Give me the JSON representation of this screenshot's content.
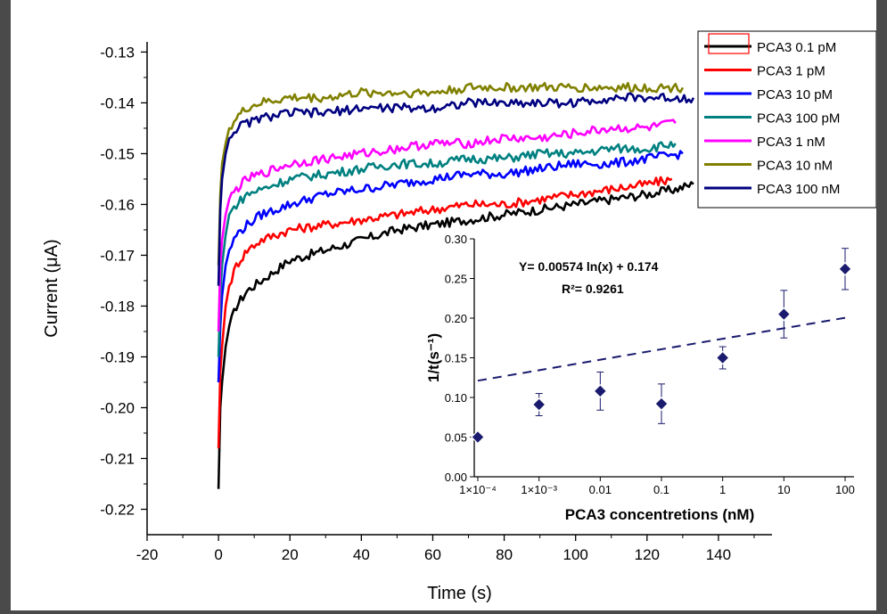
{
  "chart_data": [
    {
      "type": "line",
      "xlabel": "Time (s)",
      "ylabel": "Current (μA)",
      "xlim": [
        -20,
        155
      ],
      "ylim": [
        -0.225,
        -0.128
      ],
      "x_ticks": [
        "-20",
        "0",
        "20",
        "40",
        "60",
        "80",
        "100",
        "120",
        "140"
      ],
      "x_tick_values": [
        -20,
        0,
        20,
        40,
        60,
        80,
        100,
        120,
        140
      ],
      "y_ticks": [
        "-0.13",
        "-0.14",
        "-0.15",
        "-0.16",
        "-0.17",
        "-0.18",
        "-0.19",
        "-0.20",
        "-0.21",
        "-0.22"
      ],
      "y_tick_values": [
        -0.13,
        -0.14,
        -0.15,
        -0.16,
        -0.17,
        -0.18,
        -0.19,
        -0.2,
        -0.21,
        -0.22
      ],
      "legend_placement": "top-right",
      "series": [
        {
          "name": "PCA3 0.1  pM",
          "color": "#000000",
          "x": [
            0,
            0.5,
            1,
            2,
            3,
            5,
            8,
            12,
            20,
            30,
            40,
            50,
            60,
            70,
            80,
            90,
            100,
            110,
            120,
            128,
            133
          ],
          "y": [
            -0.216,
            -0.2,
            -0.195,
            -0.188,
            -0.184,
            -0.18,
            -0.177,
            -0.175,
            -0.171,
            -0.169,
            -0.167,
            -0.165,
            -0.164,
            -0.163,
            -0.162,
            -0.161,
            -0.16,
            -0.159,
            -0.158,
            -0.157,
            -0.156
          ]
        },
        {
          "name": "PCA3 1    pM",
          "color": "#ff0000",
          "x": [
            0,
            0.5,
            1,
            2,
            3,
            5,
            8,
            12,
            20,
            30,
            40,
            50,
            60,
            70,
            80,
            90,
            100,
            110,
            120,
            127
          ],
          "y": [
            -0.208,
            -0.193,
            -0.188,
            -0.18,
            -0.176,
            -0.172,
            -0.169,
            -0.167,
            -0.165,
            -0.164,
            -0.163,
            -0.162,
            -0.161,
            -0.16,
            -0.16,
            -0.159,
            -0.158,
            -0.157,
            -0.156,
            -0.155
          ]
        },
        {
          "name": "PCA3 10   pM",
          "color": "#0000ff",
          "x": [
            0,
            0.5,
            1,
            2,
            3,
            5,
            8,
            12,
            20,
            30,
            40,
            50,
            60,
            70,
            80,
            90,
            100,
            110,
            120,
            130
          ],
          "y": [
            -0.195,
            -0.184,
            -0.178,
            -0.172,
            -0.169,
            -0.166,
            -0.164,
            -0.162,
            -0.16,
            -0.158,
            -0.157,
            -0.156,
            -0.155,
            -0.154,
            -0.154,
            -0.153,
            -0.152,
            -0.152,
            -0.151,
            -0.15
          ]
        },
        {
          "name": "PCA3 100 pM",
          "color": "#008080",
          "x": [
            0,
            0.5,
            1,
            2,
            3,
            5,
            8,
            12,
            20,
            30,
            40,
            50,
            60,
            70,
            80,
            90,
            100,
            110,
            120,
            128
          ],
          "y": [
            -0.19,
            -0.178,
            -0.172,
            -0.166,
            -0.162,
            -0.16,
            -0.158,
            -0.157,
            -0.155,
            -0.154,
            -0.153,
            -0.152,
            -0.152,
            -0.151,
            -0.151,
            -0.15,
            -0.15,
            -0.149,
            -0.149,
            -0.148
          ]
        },
        {
          "name": "PCA3 1    nM",
          "color": "#ff00ff",
          "x": [
            0,
            0.5,
            1,
            2,
            3,
            5,
            8,
            12,
            20,
            30,
            40,
            50,
            60,
            70,
            80,
            90,
            100,
            110,
            120,
            128
          ],
          "y": [
            -0.185,
            -0.172,
            -0.167,
            -0.162,
            -0.159,
            -0.157,
            -0.155,
            -0.154,
            -0.152,
            -0.151,
            -0.15,
            -0.149,
            -0.148,
            -0.148,
            -0.147,
            -0.147,
            -0.146,
            -0.145,
            -0.145,
            -0.144
          ]
        },
        {
          "name": "PCA3 10   nM",
          "color": "#808000",
          "x": [
            0,
            0.5,
            1,
            2,
            3,
            5,
            8,
            12,
            20,
            30,
            40,
            50,
            60,
            70,
            80,
            90,
            100,
            110,
            120,
            130
          ],
          "y": [
            -0.172,
            -0.158,
            -0.152,
            -0.148,
            -0.145,
            -0.143,
            -0.141,
            -0.14,
            -0.139,
            -0.139,
            -0.138,
            -0.138,
            -0.138,
            -0.137,
            -0.137,
            -0.137,
            -0.137,
            -0.137,
            -0.137,
            -0.137
          ]
        },
        {
          "name": "PCA3 100 nM",
          "color": "#000080",
          "x": [
            0,
            0.5,
            1,
            2,
            3,
            5,
            8,
            12,
            20,
            30,
            40,
            50,
            60,
            70,
            80,
            90,
            100,
            110,
            120,
            133
          ],
          "y": [
            -0.176,
            -0.161,
            -0.155,
            -0.15,
            -0.147,
            -0.145,
            -0.144,
            -0.143,
            -0.142,
            -0.142,
            -0.141,
            -0.141,
            -0.141,
            -0.14,
            -0.14,
            -0.14,
            -0.14,
            -0.139,
            -0.139,
            -0.139
          ]
        }
      ]
    },
    {
      "type": "scatter",
      "xlabel": "PCA3 concentretions (nM)",
      "ylabel": "1/t(s⁻¹)",
      "x_scale": "log",
      "xlim": [
        0.0001,
        100
      ],
      "ylim": [
        0.0,
        0.3
      ],
      "x_ticks": [
        "1×10⁻⁴",
        "1×10⁻³",
        "0.01",
        "0.1",
        "1",
        "10",
        "100"
      ],
      "x_tick_values": [
        0.0001,
        0.001,
        0.01,
        0.1,
        1,
        10,
        100
      ],
      "y_ticks": [
        "0.00",
        "0.05",
        "0.10",
        "0.15",
        "0.20",
        "0.25",
        "0.30"
      ],
      "y_tick_values": [
        0,
        0.05,
        0.1,
        0.15,
        0.2,
        0.25,
        0.3
      ],
      "equation": "Y= 0.00574 ln(x) + 0.174",
      "r2": "R²= 0.9261",
      "fit": {
        "slope": 0.00574,
        "intercept": 0.174,
        "color": "#1a1a6e"
      },
      "marker_color": "#1a1a6e",
      "points": [
        {
          "x": 0.0001,
          "y": 0.05,
          "err": 0.004
        },
        {
          "x": 0.001,
          "y": 0.091,
          "err": 0.014
        },
        {
          "x": 0.01,
          "y": 0.108,
          "err": 0.024
        },
        {
          "x": 0.1,
          "y": 0.092,
          "err": 0.025
        },
        {
          "x": 1,
          "y": 0.15,
          "err": 0.014
        },
        {
          "x": 10,
          "y": 0.205,
          "err": 0.03
        },
        {
          "x": 100,
          "y": 0.262,
          "err": 0.026
        }
      ]
    }
  ]
}
